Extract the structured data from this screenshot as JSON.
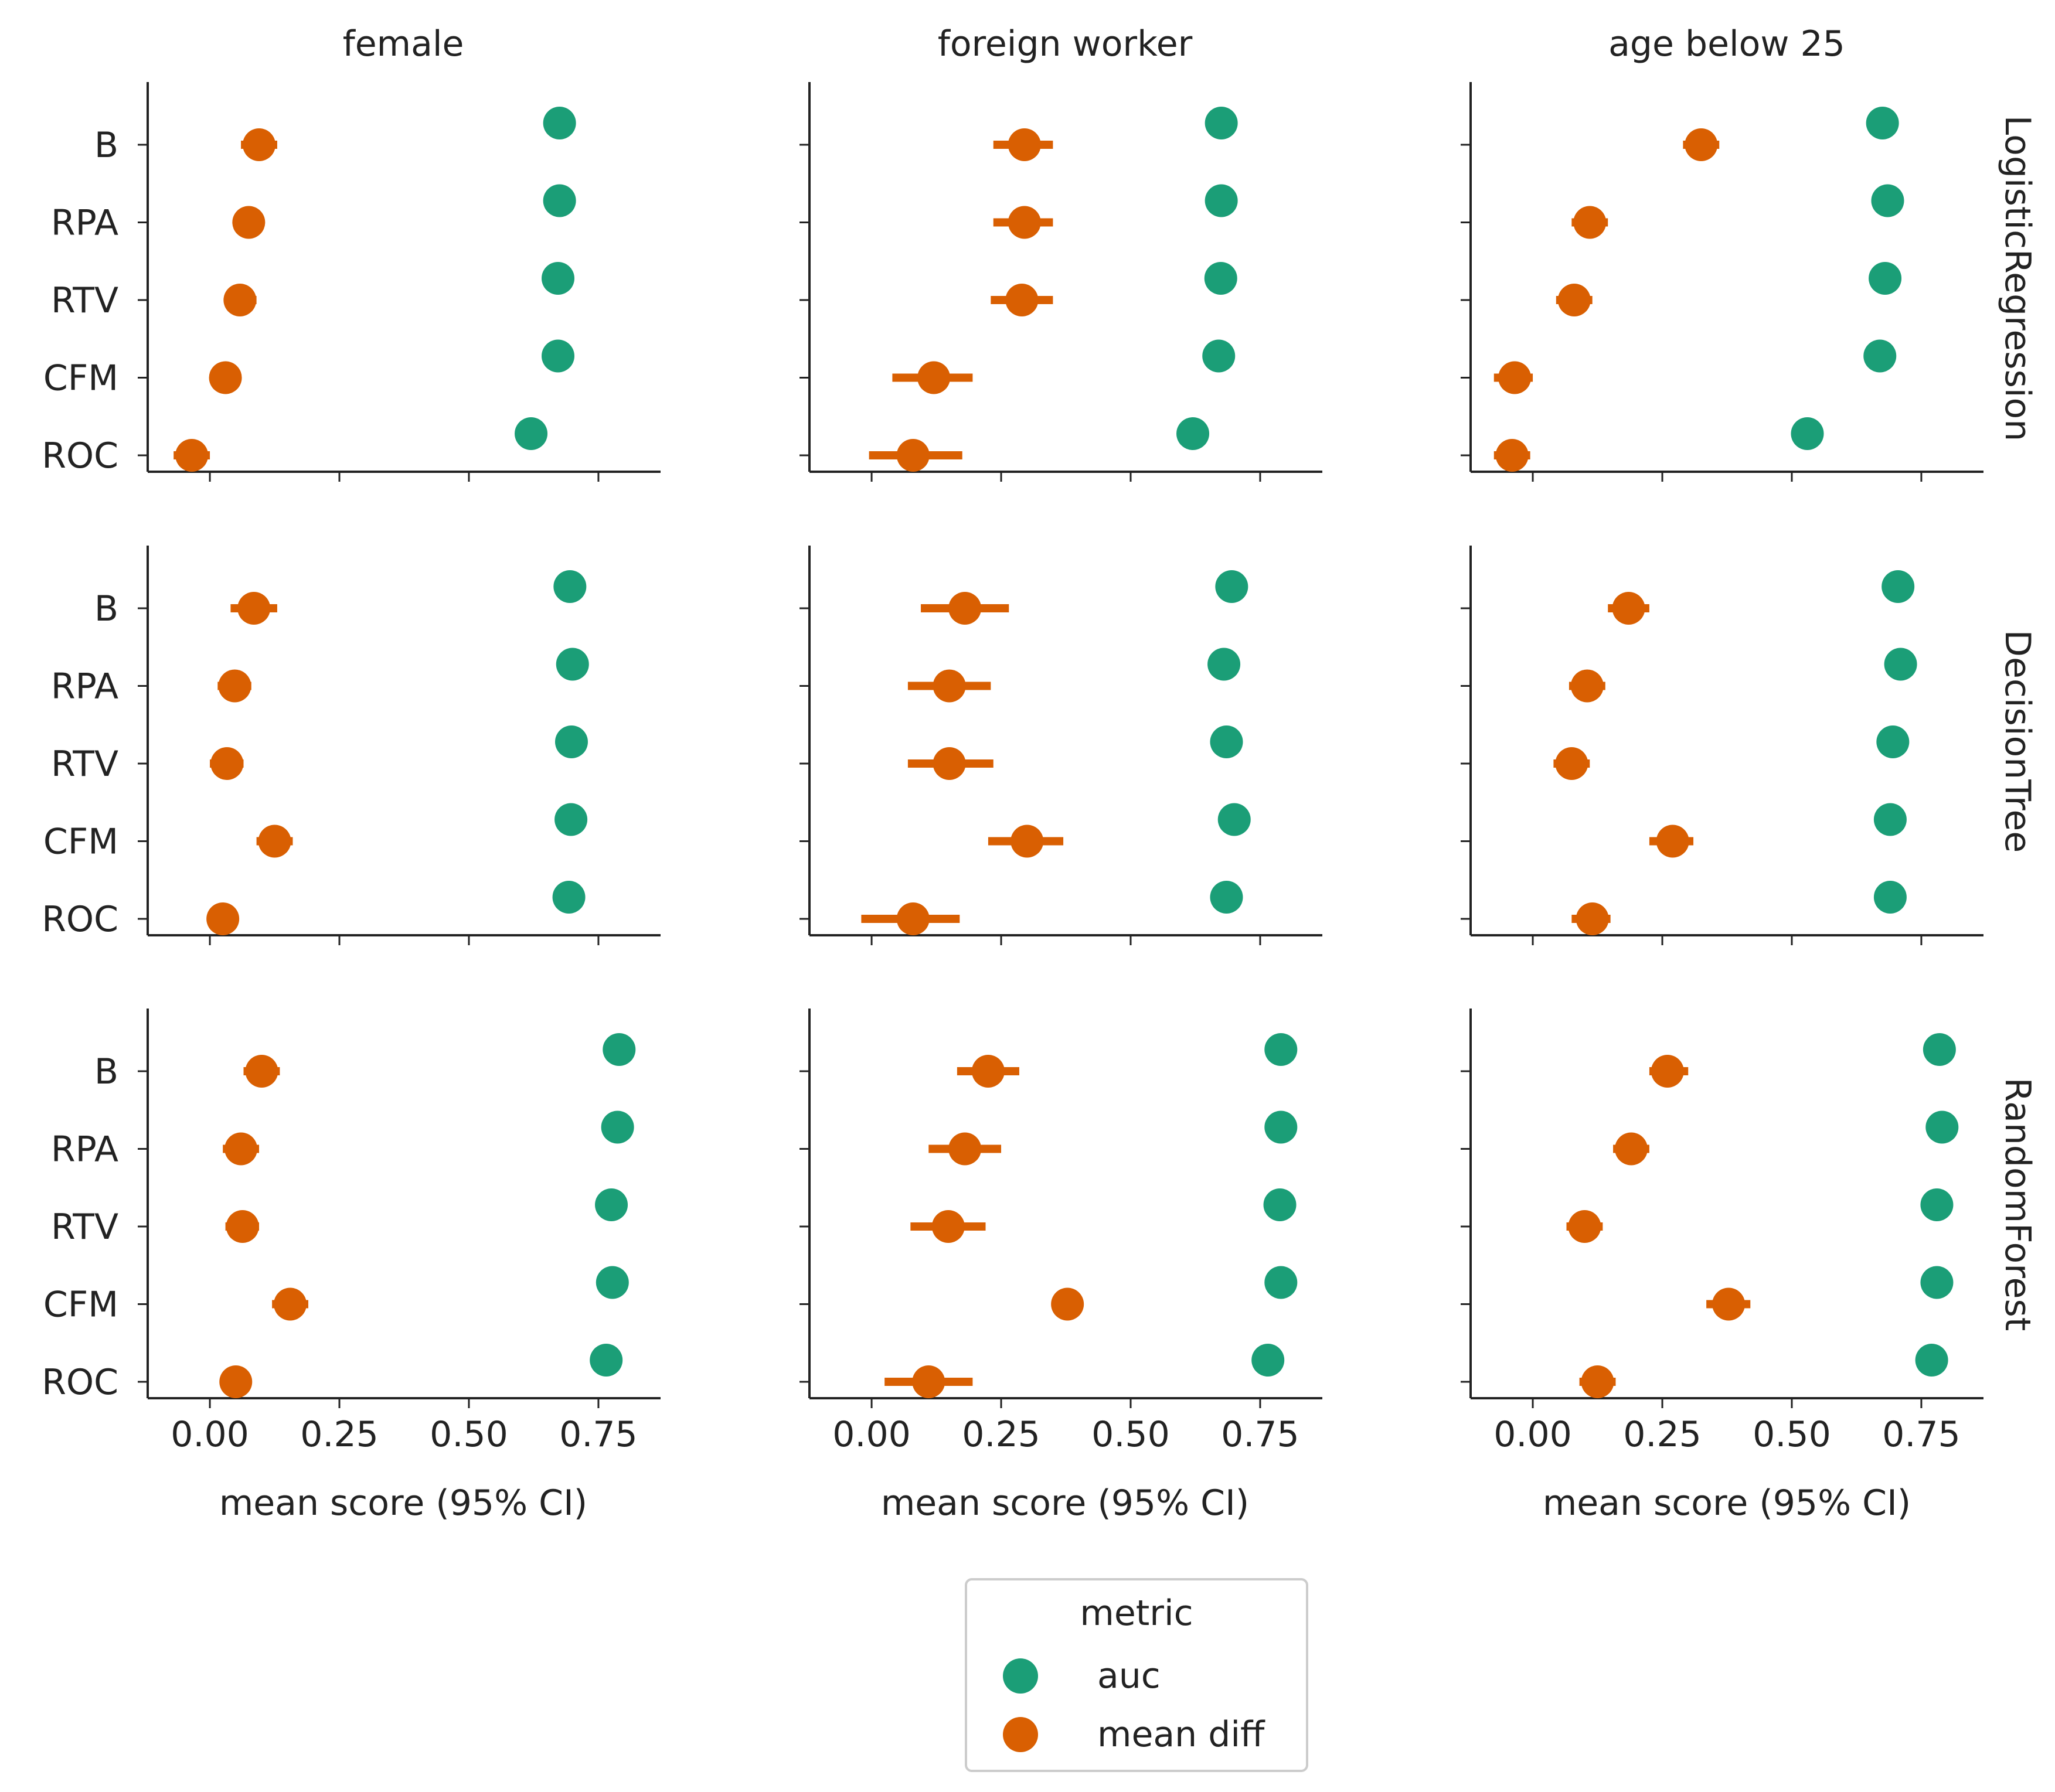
{
  "chart_data": {
    "type": "scatter",
    "layout": "facet grid (rows = model, columns = protected attribute)",
    "columns": [
      "female",
      "foreign worker",
      "age below 25"
    ],
    "rows": [
      "LogisticRegression",
      "DecisionTree",
      "RandomForest"
    ],
    "categories": [
      "B",
      "RPA",
      "RTV",
      "CFM",
      "ROC"
    ],
    "xlabel": "mean score (95% CI)",
    "xlim": [
      -0.12,
      0.87
    ],
    "xticks": [
      "0.00",
      "0.25",
      "0.50",
      "0.75"
    ],
    "xtick_values": [
      0,
      0.25,
      0.5,
      0.75
    ],
    "legend": {
      "title": "metric",
      "placement": "bottom-center",
      "entries": [
        "auc",
        "mean diff"
      ]
    },
    "colors": {
      "auc": "#1b9e77",
      "mean diff": "#d95f02"
    },
    "panels": [
      {
        "row": "LogisticRegression",
        "column": "female",
        "auc": [
          0.675,
          0.675,
          0.672,
          0.672,
          0.62
        ],
        "mean_diff": [
          0.095,
          0.075,
          0.058,
          0.03,
          -0.035
        ],
        "mean_diff_ci": [
          [
            0.06,
            0.13
          ],
          [
            0.045,
            0.105
          ],
          [
            0.03,
            0.09
          ],
          [
            0.0,
            0.06
          ],
          [
            -0.07,
            0.0
          ]
        ]
      },
      {
        "row": "LogisticRegression",
        "column": "foreign worker",
        "auc": [
          0.675,
          0.675,
          0.674,
          0.67,
          0.62
        ],
        "mean_diff": [
          0.295,
          0.295,
          0.29,
          0.12,
          0.08
        ],
        "mean_diff_ci": [
          [
            0.235,
            0.35
          ],
          [
            0.235,
            0.35
          ],
          [
            0.23,
            0.35
          ],
          [
            0.04,
            0.195
          ],
          [
            -0.005,
            0.175
          ]
        ]
      },
      {
        "row": "LogisticRegression",
        "column": "age below 25",
        "auc": [
          0.675,
          0.685,
          0.68,
          0.67,
          0.53
        ],
        "mean_diff": [
          0.325,
          0.11,
          0.08,
          -0.035,
          -0.04
        ],
        "mean_diff_ci": [
          [
            0.29,
            0.36
          ],
          [
            0.075,
            0.145
          ],
          [
            0.045,
            0.115
          ],
          [
            -0.075,
            0.0
          ],
          [
            -0.075,
            -0.005
          ]
        ]
      },
      {
        "row": "DecisionTree",
        "column": "female",
        "auc": [
          0.695,
          0.7,
          0.698,
          0.697,
          0.693
        ],
        "mean_diff": [
          0.085,
          0.048,
          0.033,
          0.125,
          0.025
        ],
        "mean_diff_ci": [
          [
            0.04,
            0.13
          ],
          [
            0.015,
            0.08
          ],
          [
            0.0,
            0.065
          ],
          [
            0.09,
            0.16
          ],
          [
            0.0,
            0.05
          ]
        ]
      },
      {
        "row": "DecisionTree",
        "column": "foreign worker",
        "auc": [
          0.695,
          0.68,
          0.685,
          0.7,
          0.685
        ],
        "mean_diff": [
          0.18,
          0.15,
          0.15,
          0.3,
          0.08
        ],
        "mean_diff_ci": [
          [
            0.095,
            0.265
          ],
          [
            0.07,
            0.23
          ],
          [
            0.07,
            0.235
          ],
          [
            0.225,
            0.37
          ],
          [
            -0.02,
            0.17
          ]
        ]
      },
      {
        "row": "DecisionTree",
        "column": "age below 25",
        "auc": [
          0.705,
          0.71,
          0.695,
          0.69,
          0.69
        ],
        "mean_diff": [
          0.185,
          0.105,
          0.075,
          0.27,
          0.115
        ],
        "mean_diff_ci": [
          [
            0.145,
            0.225
          ],
          [
            0.07,
            0.14
          ],
          [
            0.04,
            0.11
          ],
          [
            0.225,
            0.31
          ],
          [
            0.075,
            0.15
          ]
        ]
      },
      {
        "row": "RandomForest",
        "column": "female",
        "auc": [
          0.79,
          0.787,
          0.775,
          0.777,
          0.765
        ],
        "mean_diff": [
          0.1,
          0.06,
          0.063,
          0.155,
          0.05
        ],
        "mean_diff_ci": [
          [
            0.065,
            0.135
          ],
          [
            0.025,
            0.095
          ],
          [
            0.03,
            0.095
          ],
          [
            0.12,
            0.19
          ],
          [
            0.05,
            0.05
          ]
        ]
      },
      {
        "row": "RandomForest",
        "column": "foreign worker",
        "auc": [
          0.79,
          0.79,
          0.788,
          0.79,
          0.765
        ],
        "mean_diff": [
          0.225,
          0.18,
          0.148,
          0.378,
          0.11
        ],
        "mean_diff_ci": [
          [
            0.165,
            0.285
          ],
          [
            0.11,
            0.25
          ],
          [
            0.075,
            0.22
          ],
          [
            0.378,
            0.378
          ],
          [
            0.025,
            0.195
          ]
        ]
      },
      {
        "row": "RandomForest",
        "column": "age below 25",
        "auc": [
          0.785,
          0.79,
          0.78,
          0.78,
          0.77
        ],
        "mean_diff": [
          0.26,
          0.19,
          0.1,
          0.378,
          0.125
        ],
        "mean_diff_ci": [
          [
            0.225,
            0.3
          ],
          [
            0.155,
            0.225
          ],
          [
            0.065,
            0.135
          ],
          [
            0.335,
            0.42
          ],
          [
            0.09,
            0.16
          ]
        ]
      }
    ]
  }
}
